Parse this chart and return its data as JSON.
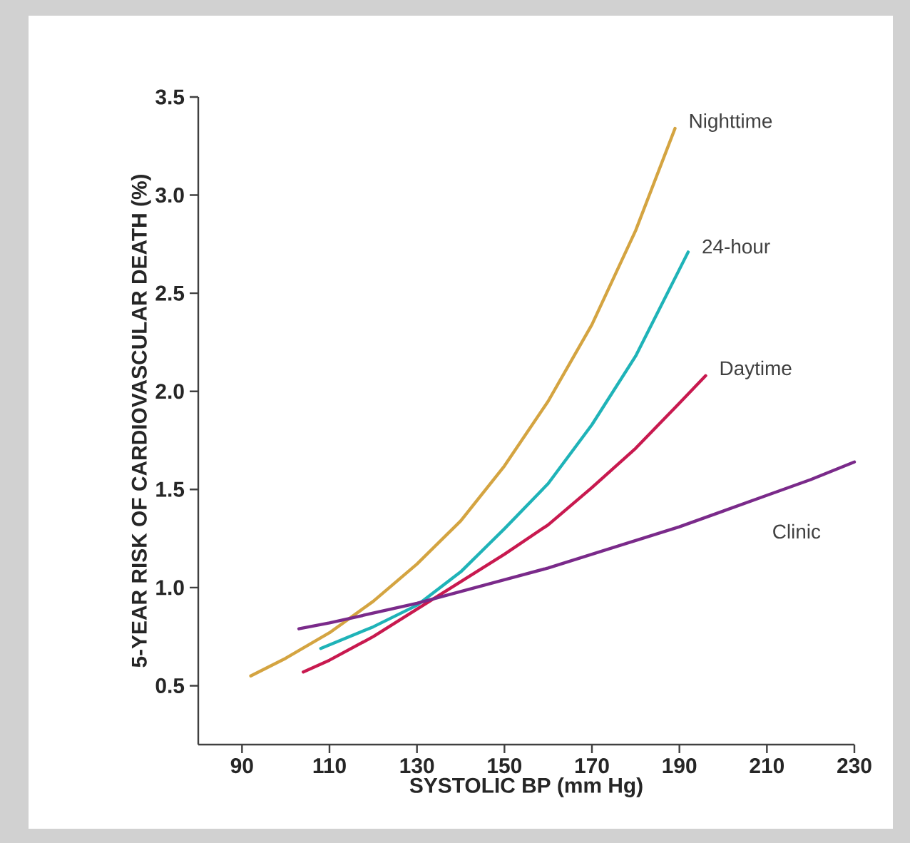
{
  "chart_data": {
    "type": "line",
    "xlabel": "SYSTOLIC BP (mm Hg)",
    "ylabel": "5-YEAR RISK OF CARDIOVASCULAR DEATH (%)",
    "xlim": [
      80,
      230
    ],
    "xticks": [
      90,
      110,
      130,
      150,
      170,
      190,
      210,
      230
    ],
    "ylim": [
      0.2,
      3.5
    ],
    "yticks": [
      {
        "value": 0.5,
        "label": "0.5"
      },
      {
        "value": 1.0,
        "label": "1.0"
      },
      {
        "value": 1.5,
        "label": "1.5"
      },
      {
        "value": 2.0,
        "label": "2.0"
      },
      {
        "value": 2.5,
        "label": "2.5"
      },
      {
        "value": 3.0,
        "label": "3.0"
      },
      {
        "value": 3.5,
        "label": "3.5"
      }
    ],
    "series": [
      {
        "name": "Nighttime",
        "color": "#d4a441",
        "x": [
          92,
          100,
          110,
          120,
          130,
          140,
          150,
          160,
          170,
          180,
          189
        ],
        "values": [
          0.55,
          0.64,
          0.77,
          0.93,
          1.12,
          1.34,
          1.62,
          1.95,
          2.34,
          2.82,
          3.34
        ]
      },
      {
        "name": "24-hour",
        "color": "#1fb3b8",
        "x": [
          108,
          120,
          130,
          140,
          150,
          160,
          170,
          180,
          192
        ],
        "values": [
          0.69,
          0.8,
          0.91,
          1.08,
          1.3,
          1.53,
          1.83,
          2.18,
          2.71
        ]
      },
      {
        "name": "Daytime",
        "color": "#c8194f",
        "x": [
          104,
          110,
          120,
          130,
          140,
          150,
          160,
          170,
          180,
          190,
          196
        ],
        "values": [
          0.57,
          0.63,
          0.75,
          0.89,
          1.03,
          1.17,
          1.32,
          1.51,
          1.71,
          1.94,
          2.08
        ]
      },
      {
        "name": "Clinic",
        "color": "#7a2a8a",
        "x": [
          103,
          110,
          120,
          130,
          140,
          150,
          160,
          170,
          180,
          190,
          200,
          210,
          220,
          230
        ],
        "values": [
          0.79,
          0.82,
          0.87,
          0.92,
          0.98,
          1.04,
          1.1,
          1.17,
          1.24,
          1.31,
          1.39,
          1.47,
          1.55,
          1.64
        ]
      }
    ]
  }
}
